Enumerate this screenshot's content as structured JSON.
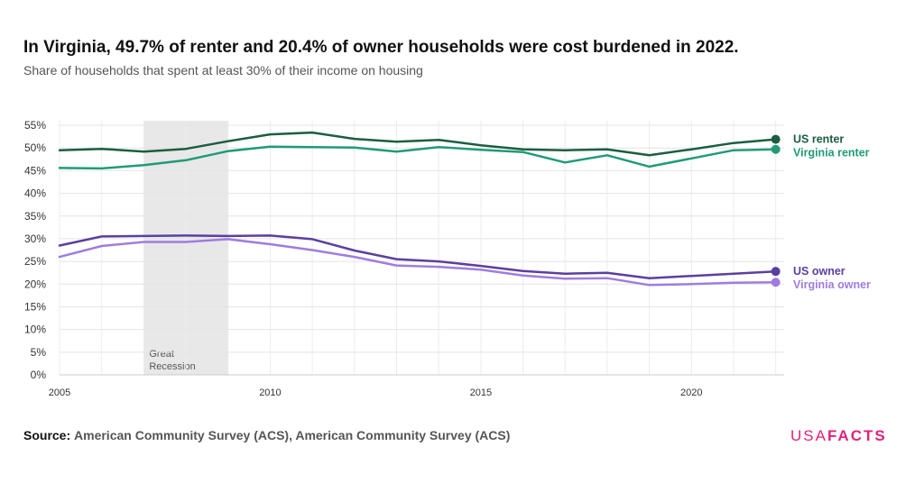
{
  "title": "In Virginia, 49.7% of renter and 20.4% of owner households were cost burdened in 2022.",
  "subtitle": "Share of households that spent at least 30% of their income on housing",
  "source": {
    "label": "Source:",
    "text": "American Community Survey (ACS), American Community Survey (ACS)"
  },
  "logo": {
    "part1": "USA",
    "part2": "FACTS",
    "color": "#e0237a"
  },
  "chart_data": {
    "type": "line",
    "x": [
      2005,
      2006,
      2007,
      2008,
      2009,
      2010,
      2011,
      2012,
      2013,
      2014,
      2015,
      2016,
      2017,
      2018,
      2019,
      2020,
      2021,
      2022
    ],
    "x_ticks": [
      2005,
      2010,
      2015,
      2020
    ],
    "y_ticks": [
      0,
      5,
      10,
      15,
      20,
      25,
      30,
      35,
      40,
      45,
      50,
      55
    ],
    "y_tick_labels": [
      "0%",
      "5%",
      "10%",
      "15%",
      "20%",
      "25%",
      "30%",
      "35%",
      "40%",
      "45%",
      "50%",
      "55%"
    ],
    "ylim": [
      0,
      56
    ],
    "xlim": [
      2005,
      2022.2
    ],
    "y_unit": "%",
    "grid": "vertical-and-horizontal",
    "legend": "end-of-line labels",
    "shaded_region": {
      "start": 2007,
      "end": 2009,
      "label_lines": [
        "Great",
        "Recession"
      ],
      "color": "#e8e8e8"
    },
    "series": [
      {
        "name": "US renter",
        "color": "#1b5e3f",
        "values": [
          49.5,
          49.8,
          49.2,
          49.8,
          51.5,
          53.0,
          53.4,
          52.0,
          51.4,
          51.8,
          50.6,
          49.7,
          49.5,
          49.7,
          48.4,
          49.7,
          51.1,
          51.9
        ]
      },
      {
        "name": "Virginia renter",
        "color": "#1f9b77",
        "values": [
          45.6,
          45.5,
          46.2,
          47.3,
          49.3,
          50.3,
          50.2,
          50.1,
          49.2,
          50.2,
          49.6,
          49.1,
          46.8,
          48.4,
          45.9,
          47.7,
          49.5,
          49.7
        ]
      },
      {
        "name": "US owner",
        "color": "#5b3fa0",
        "values": [
          28.5,
          30.5,
          30.6,
          30.7,
          30.6,
          30.7,
          29.9,
          27.4,
          25.5,
          25.0,
          24.0,
          22.9,
          22.3,
          22.5,
          21.3,
          21.8,
          22.3,
          22.8
        ]
      },
      {
        "name": "Virginia owner",
        "color": "#9f7ce0",
        "values": [
          26.0,
          28.4,
          29.3,
          29.3,
          29.9,
          28.8,
          27.5,
          26.0,
          24.1,
          23.8,
          23.2,
          21.9,
          21.2,
          21.3,
          19.8,
          20.0,
          20.3,
          20.4
        ]
      }
    ]
  }
}
